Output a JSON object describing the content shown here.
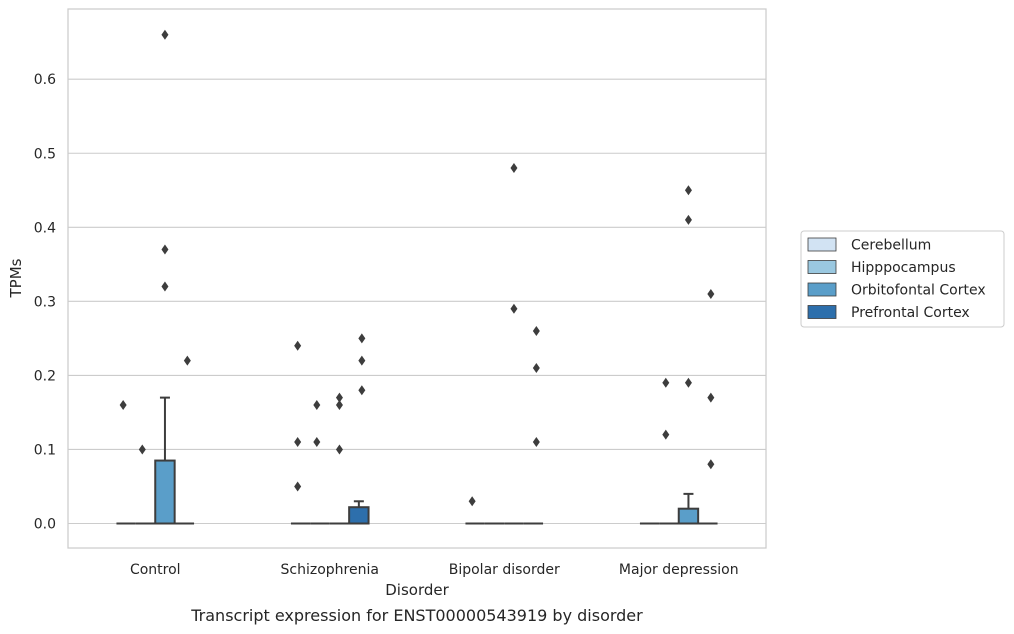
{
  "chart_data": {
    "type": "box",
    "xlabel": "Disorder",
    "ylabel": "TPMs",
    "caption": "Transcript expression for ENST00000543919 by disorder",
    "categories": [
      "Control",
      "Schizophrenia",
      "Bipolar disorder",
      "Major depression"
    ],
    "ylim": [
      -0.032,
      0.69
    ],
    "yticks": [
      0.0,
      0.1,
      0.2,
      0.3,
      0.4,
      0.5,
      0.6
    ],
    "ytick_labels": [
      "0.0",
      "0.1",
      "0.2",
      "0.3",
      "0.4",
      "0.5",
      "0.6"
    ],
    "grid": "horizontal",
    "legend_position": "right",
    "series": [
      {
        "name": "Cerebellum",
        "color": "#d2e3f3",
        "boxes": [
          {
            "q1": 0,
            "median": 0,
            "q3": 0,
            "whisker_low": 0,
            "whisker_high": 0,
            "outliers": [
              0.16
            ]
          },
          {
            "q1": 0,
            "median": 0,
            "q3": 0,
            "whisker_low": 0,
            "whisker_high": 0,
            "outliers": [
              0.24,
              0.11,
              0.05
            ]
          },
          {
            "q1": 0,
            "median": 0,
            "q3": 0,
            "whisker_low": 0,
            "whisker_high": 0,
            "outliers": [
              0.03
            ]
          },
          {
            "q1": 0,
            "median": 0,
            "q3": 0,
            "whisker_low": 0,
            "whisker_high": 0,
            "outliers": []
          }
        ]
      },
      {
        "name": "Hipppocampus",
        "color": "#9ac8e0",
        "boxes": [
          {
            "q1": 0,
            "median": 0,
            "q3": 0,
            "whisker_low": 0,
            "whisker_high": 0,
            "outliers": [
              0.1
            ]
          },
          {
            "q1": 0,
            "median": 0,
            "q3": 0,
            "whisker_low": 0,
            "whisker_high": 0,
            "outliers": [
              0.16,
              0.11
            ]
          },
          {
            "q1": 0,
            "median": 0,
            "q3": 0,
            "whisker_low": 0,
            "whisker_high": 0,
            "outliers": []
          },
          {
            "q1": 0,
            "median": 0,
            "q3": 0,
            "whisker_low": 0,
            "whisker_high": 0,
            "outliers": [
              0.19,
              0.12
            ]
          }
        ]
      },
      {
        "name": "Orbitofontal Cortex",
        "color": "#5a9ec9",
        "boxes": [
          {
            "q1": 0,
            "median": 0,
            "q3": 0.085,
            "whisker_low": 0,
            "whisker_high": 0.17,
            "outliers": [
              0.66,
              0.37,
              0.32
            ]
          },
          {
            "q1": 0,
            "median": 0,
            "q3": 0,
            "whisker_low": 0,
            "whisker_high": 0,
            "outliers": [
              0.17,
              0.16,
              0.1
            ]
          },
          {
            "q1": 0,
            "median": 0,
            "q3": 0,
            "whisker_low": 0,
            "whisker_high": 0,
            "outliers": [
              0.48,
              0.29
            ]
          },
          {
            "q1": 0,
            "median": 0,
            "q3": 0.02,
            "whisker_low": 0,
            "whisker_high": 0.04,
            "outliers": [
              0.45,
              0.41,
              0.19
            ]
          }
        ]
      },
      {
        "name": "Prefrontal Cortex",
        "color": "#2d6fac",
        "boxes": [
          {
            "q1": 0,
            "median": 0,
            "q3": 0,
            "whisker_low": 0,
            "whisker_high": 0,
            "outliers": [
              0.22
            ]
          },
          {
            "q1": 0,
            "median": 0,
            "q3": 0.022,
            "whisker_low": 0,
            "whisker_high": 0.03,
            "outliers": [
              0.25,
              0.22,
              0.18
            ]
          },
          {
            "q1": 0,
            "median": 0,
            "q3": 0,
            "whisker_low": 0,
            "whisker_high": 0,
            "outliers": [
              0.26,
              0.21,
              0.11
            ]
          },
          {
            "q1": 0,
            "median": 0,
            "q3": 0,
            "whisker_low": 0,
            "whisker_high": 0,
            "outliers": [
              0.31,
              0.17,
              0.08
            ]
          }
        ]
      }
    ]
  }
}
